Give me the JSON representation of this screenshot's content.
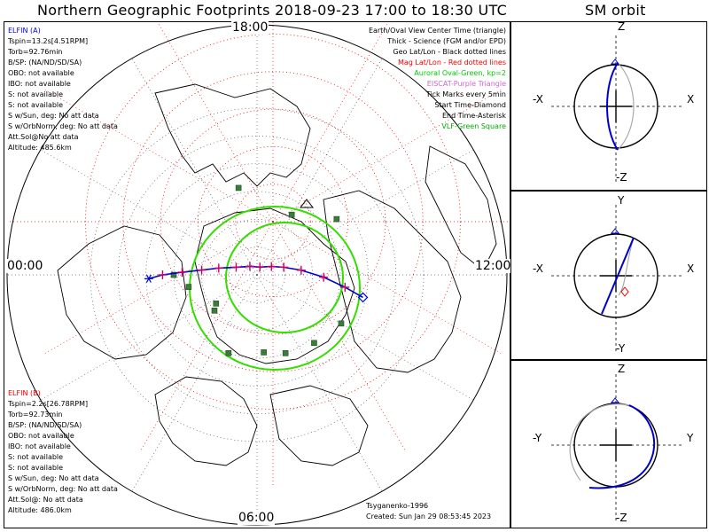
{
  "title": "Northern Geographic Footprints 2018-09-23 17:00 to 18:30 UTC",
  "sm_title": "SM orbit",
  "hour_labels": {
    "top": "18:00",
    "left": "00:00",
    "right": "12:00",
    "bottom": "06:00"
  },
  "elfin_a": {
    "name": "ELFIN (A)",
    "color": "#0000ee",
    "lines": [
      "Tspin=13.2s[4.51RPM]",
      "Torb=92.76min",
      "B/SP: (NA/ND/SD/SA)",
      "OBO: not available",
      "IBO: not available",
      "S: not available",
      "S: not available",
      "S w/Sun, deg: No att data",
      "S w/OrbNorm, deg: No att data",
      "Att.Sol@No att data",
      "Altitude: 485.6km"
    ]
  },
  "elfin_b": {
    "name": "ELFIN (B)",
    "color": "#ee0000",
    "lines": [
      "Tspin=2.2s[26.78RPM]",
      "Torb=92.73min",
      "B/SP: (NA/ND/SD/SA)",
      "OBO: not available",
      "IBO: not available",
      "S: not available",
      "S: not available",
      "S w/Sun, deg: No att data",
      "S w/OrbNorm, deg: No att data",
      "Att.Sol@: No att data",
      "Altitude: 486.0km"
    ]
  },
  "legend": [
    {
      "text": "Earth/Oval View Center Time (triangle)",
      "color": "#000000"
    },
    {
      "text": "Thick - Science (FGM and/or EPD)",
      "color": "#000000"
    },
    {
      "text": "Geo Lat/Lon - Black dotted lines",
      "color": "#000000"
    },
    {
      "text": "Mag Lat/Lon - Red dotted lines",
      "color": "#ee0000"
    },
    {
      "text": "Auroral Oval-Green, kp=2",
      "color": "#00cc00"
    },
    {
      "text": "EISCAT-Purple Triangle",
      "color": "#cc66cc"
    },
    {
      "text": "Tick Marks every 5min",
      "color": "#000000"
    },
    {
      "text": "Start Time-Diamond",
      "color": "#000000"
    },
    {
      "text": "End Time-Asterisk",
      "color": "#000000"
    },
    {
      "text": "VLF-Green Square",
      "color": "#00aa00"
    }
  ],
  "credit_model": "Tsyganenko-1996",
  "credit_created": "Created: Sun Jan 29 08:53:45 2023",
  "orbit_axes": [
    {
      "top": "Z",
      "bottom": "-Z",
      "left": "-X",
      "right": "X"
    },
    {
      "top": "Y",
      "bottom": "-Y",
      "left": "-X",
      "right": "X"
    },
    {
      "top": "Z",
      "bottom": "-Z",
      "left": "-Y",
      "right": "Y"
    }
  ],
  "colors": {
    "track": "#0000cc",
    "tick": "#cc0066",
    "oval": "#33dd00",
    "vlf": "#3a7d3a",
    "grid_red": "#ee0000"
  },
  "chart_data": {
    "type": "scatter",
    "projection": "north-polar",
    "title": "Northern Geographic Footprints 2018-09-23 17:00 to 18:30 UTC",
    "track_geo": [
      [
        51,
        102
      ],
      [
        58,
        98
      ],
      [
        66,
        92
      ],
      [
        74,
        84
      ],
      [
        80,
        74
      ],
      [
        84,
        60
      ],
      [
        87,
        20
      ],
      [
        86,
        -40
      ],
      [
        82,
        -70
      ],
      [
        76,
        -80
      ],
      [
        70,
        -85
      ],
      [
        63,
        -88
      ],
      [
        56,
        -90
      ],
      [
        51,
        -92
      ]
    ],
    "auroral_oval_kp2_center": {
      "lat": 80,
      "lon": -90
    },
    "vlf_stations": [
      [
        70,
        -130
      ],
      [
        65,
        -100
      ],
      [
        72,
        -125
      ],
      [
        60,
        -90
      ],
      [
        58,
        -12
      ],
      [
        65,
        30
      ],
      [
        55,
        55
      ],
      [
        58,
        140
      ],
      [
        60,
        160
      ],
      [
        55,
        120
      ],
      [
        62,
        175
      ],
      [
        60,
        200
      ]
    ],
    "mag_lat_circles_deg": [
      40,
      50,
      60,
      70,
      80
    ],
    "geo_lat_circles_deg": [
      30,
      40,
      50,
      60,
      70,
      80
    ]
  }
}
